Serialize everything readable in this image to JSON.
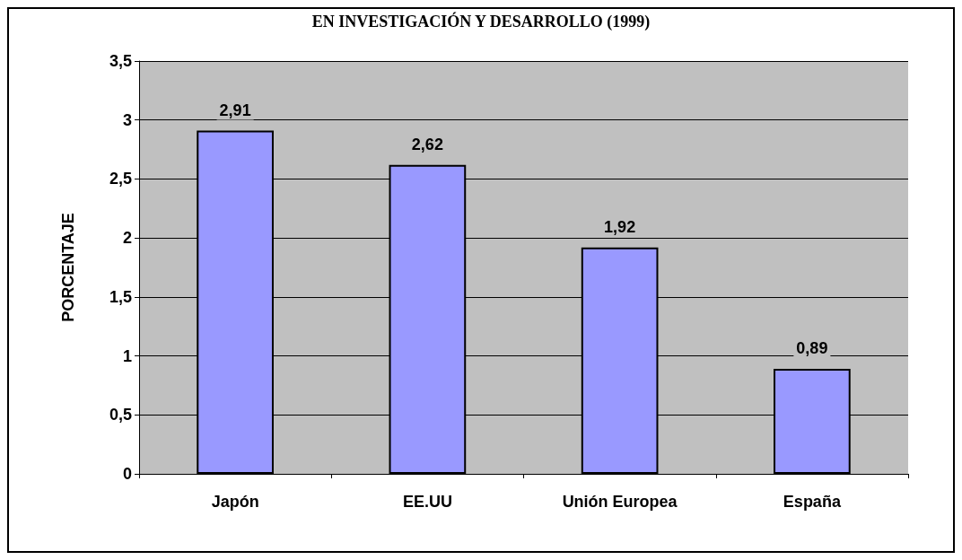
{
  "chart_data": {
    "type": "bar",
    "title": "EN INVESTIGACIÓN Y DESARROLLO (1999)",
    "ylabel": "PORCENTAJE",
    "categories": [
      "Japón",
      "EE.UU",
      "Unión Europea",
      "España"
    ],
    "values": [
      2.91,
      2.62,
      1.92,
      0.89
    ],
    "value_labels": [
      "2,91",
      "2,62",
      "1,92",
      "0,89"
    ],
    "color": "#9999ff",
    "ylim": [
      0,
      3.5
    ],
    "yticks": [
      0,
      {
        "value": 0.5,
        "label": "0,5"
      },
      1,
      {
        "value": 1.5,
        "label": "1,5"
      },
      2,
      {
        "value": 2.5,
        "label": "2,5"
      },
      3,
      {
        "value": 3.5,
        "label": "3,5"
      }
    ],
    "grid": "y"
  }
}
